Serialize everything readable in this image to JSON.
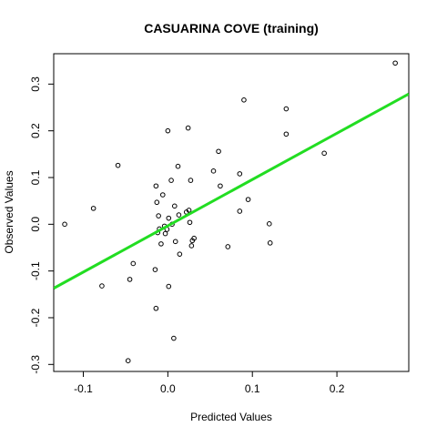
{
  "chart_data": {
    "type": "scatter",
    "title": "CASUARINA COVE (training)",
    "xlabel": "Predicted Values",
    "ylabel": "Observed Values",
    "xlim": [
      -0.135,
      0.285
    ],
    "ylim": [
      -0.315,
      0.365
    ],
    "x_ticks": [
      -0.1,
      0.0,
      0.1,
      0.2
    ],
    "x_tick_labels": [
      "-0.1",
      "0.0",
      "0.1",
      "0.2"
    ],
    "y_ticks": [
      -0.3,
      -0.2,
      -0.1,
      0.0,
      0.1,
      0.2,
      0.3
    ],
    "y_tick_labels": [
      "-0.3",
      "-0.2",
      "-0.1",
      "0.0",
      "0.1",
      "0.2",
      "0.3"
    ],
    "grid": false,
    "point_color": "#000000",
    "line_color": "#22dd22",
    "fit_line": {
      "x": [
        -0.135,
        0.285
      ],
      "y": [
        -0.137,
        0.279
      ]
    },
    "points": [
      {
        "x": -0.122,
        "y": 0.0
      },
      {
        "x": -0.088,
        "y": 0.034
      },
      {
        "x": -0.078,
        "y": -0.132
      },
      {
        "x": -0.059,
        "y": 0.126
      },
      {
        "x": -0.047,
        "y": -0.292
      },
      {
        "x": -0.045,
        "y": -0.118
      },
      {
        "x": -0.041,
        "y": -0.084
      },
      {
        "x": -0.015,
        "y": -0.097
      },
      {
        "x": -0.014,
        "y": -0.18
      },
      {
        "x": -0.014,
        "y": 0.082
      },
      {
        "x": -0.013,
        "y": 0.047
      },
      {
        "x": -0.012,
        "y": -0.018
      },
      {
        "x": -0.011,
        "y": 0.018
      },
      {
        "x": -0.01,
        "y": -0.01
      },
      {
        "x": -0.008,
        "y": -0.042
      },
      {
        "x": -0.006,
        "y": 0.063
      },
      {
        "x": -0.004,
        "y": -0.004
      },
      {
        "x": -0.003,
        "y": -0.02
      },
      {
        "x": -0.001,
        "y": -0.011
      },
      {
        "x": 0.0,
        "y": 0.2
      },
      {
        "x": 0.001,
        "y": -0.133
      },
      {
        "x": 0.001,
        "y": 0.013
      },
      {
        "x": 0.004,
        "y": 0.094
      },
      {
        "x": 0.005,
        "y": 0.0
      },
      {
        "x": 0.007,
        "y": -0.244
      },
      {
        "x": 0.008,
        "y": 0.039
      },
      {
        "x": 0.009,
        "y": -0.037
      },
      {
        "x": 0.012,
        "y": 0.124
      },
      {
        "x": 0.013,
        "y": 0.02
      },
      {
        "x": 0.014,
        "y": -0.064
      },
      {
        "x": 0.022,
        "y": 0.026
      },
      {
        "x": 0.024,
        "y": 0.206
      },
      {
        "x": 0.025,
        "y": 0.03
      },
      {
        "x": 0.026,
        "y": 0.004
      },
      {
        "x": 0.027,
        "y": 0.094
      },
      {
        "x": 0.028,
        "y": -0.046
      },
      {
        "x": 0.029,
        "y": -0.035
      },
      {
        "x": 0.031,
        "y": -0.03
      },
      {
        "x": 0.054,
        "y": 0.114
      },
      {
        "x": 0.06,
        "y": 0.156
      },
      {
        "x": 0.062,
        "y": 0.082
      },
      {
        "x": 0.071,
        "y": -0.048
      },
      {
        "x": 0.085,
        "y": 0.108
      },
      {
        "x": 0.085,
        "y": 0.028
      },
      {
        "x": 0.09,
        "y": 0.266
      },
      {
        "x": 0.095,
        "y": 0.053
      },
      {
        "x": 0.12,
        "y": 0.001
      },
      {
        "x": 0.121,
        "y": -0.04
      },
      {
        "x": 0.14,
        "y": 0.247
      },
      {
        "x": 0.14,
        "y": 0.193
      },
      {
        "x": 0.185,
        "y": 0.152
      },
      {
        "x": 0.269,
        "y": 0.345
      }
    ]
  }
}
